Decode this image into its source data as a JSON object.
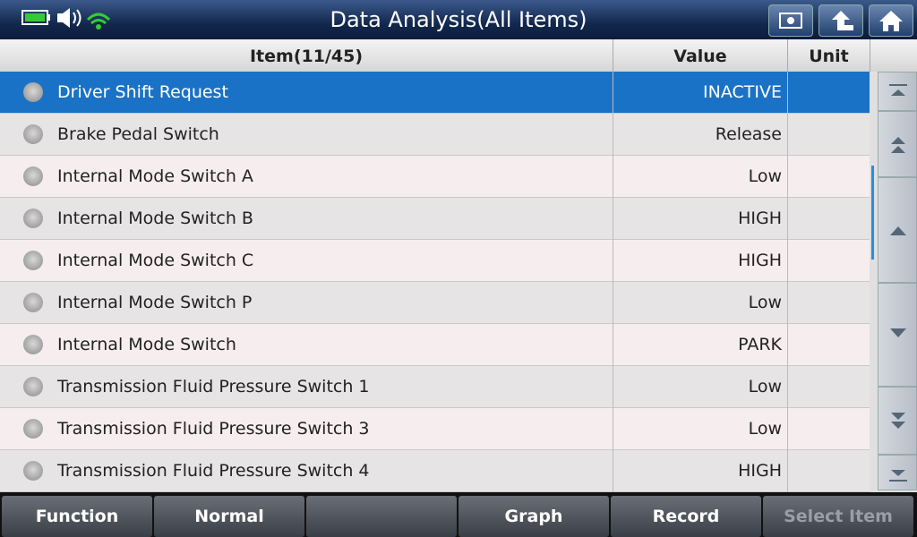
{
  "header": {
    "title": "Data Analysis(All Items)"
  },
  "table": {
    "columns": [
      "Item(11/45)",
      "Value",
      "Unit"
    ],
    "rows": [
      [
        "Driver Shift Request",
        "INACTIVE"
      ],
      [
        "Brake Pedal Switch",
        "Release"
      ],
      [
        "Internal Mode Switch A",
        "Low"
      ],
      [
        "Internal Mode Switch B",
        "HIGH"
      ],
      [
        "Internal Mode Switch C",
        "HIGH"
      ],
      [
        "Internal Mode Switch P",
        "Low"
      ],
      [
        "Internal Mode Switch",
        "PARK"
      ],
      [
        "Transmission Fluid Pressure Switch 1",
        "Low"
      ],
      [
        "Transmission Fluid Pressure Switch 3",
        "Low"
      ],
      [
        "Transmission Fluid Pressure Switch 4",
        "HIGH"
      ]
    ]
  },
  "toolbar": {
    "left": [
      "Function",
      "Normal"
    ],
    "right": [
      "Graph",
      "Record",
      "Select Item"
    ]
  }
}
